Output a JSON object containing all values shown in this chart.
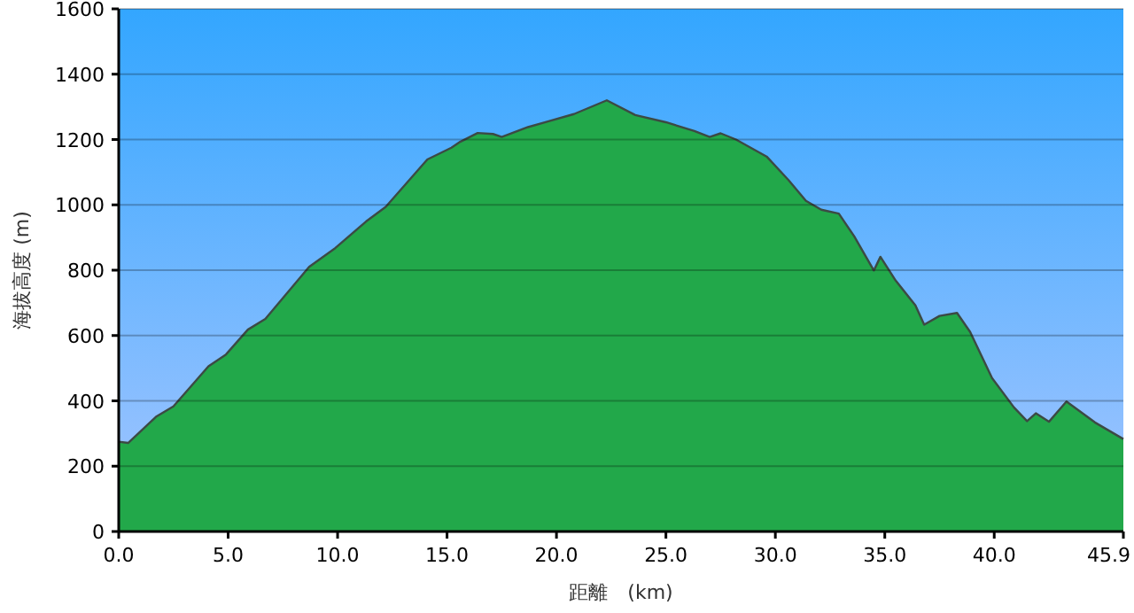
{
  "chart_data": {
    "type": "area",
    "xlabel": "距離　(km)",
    "ylabel": "海拔高度 (m)",
    "x": [
      0,
      0.43,
      1.7,
      2.5,
      4.1,
      4.9,
      5.9,
      6.7,
      8.7,
      9.9,
      11.3,
      12.2,
      14.1,
      15.2,
      15.6,
      16.4,
      17.1,
      17.5,
      18.7,
      19.5,
      20.8,
      22.3,
      23.6,
      25.0,
      26.3,
      27.0,
      27.5,
      28.2,
      29.6,
      30.6,
      31.4,
      32.1,
      32.9,
      33.6,
      34.5,
      34.8,
      35.5,
      36.4,
      36.8,
      37.5,
      38.3,
      38.9,
      39.9,
      40.9,
      41.5,
      41.9,
      42.5,
      43.3,
      44.6,
      45.9
    ],
    "series": [
      {
        "color": "#22a84a",
        "values": [
          275,
          271,
          351,
          383,
          506,
          542,
          618,
          651,
          810,
          868,
          949,
          994,
          1139,
          1175,
          1193,
          1220,
          1217,
          1208,
          1238,
          1253,
          1278,
          1320,
          1275,
          1253,
          1226,
          1208,
          1219,
          1200,
          1148,
          1076,
          1012,
          985,
          973,
          904,
          799,
          841,
          768,
          692,
          633,
          660,
          669,
          611,
          470,
          380,
          338,
          362,
          336,
          398,
          334,
          283
        ]
      }
    ],
    "xlim": [
      0,
      45.9
    ],
    "xticks": [
      {
        "value": 0,
        "label": "0.0"
      },
      {
        "value": 5,
        "label": "5.0"
      },
      {
        "value": 10,
        "label": "10.0"
      },
      {
        "value": 15,
        "label": "15.0"
      },
      {
        "value": 20,
        "label": "20.0"
      },
      {
        "value": 25,
        "label": "25.0"
      },
      {
        "value": 30,
        "label": "30.0"
      },
      {
        "value": 35,
        "label": "35.0"
      },
      {
        "value": 40,
        "label": "40.0"
      },
      45.9
    ],
    "ylim": [
      0,
      1600
    ],
    "yticks": [
      0,
      200,
      400,
      600,
      800,
      1000,
      1200,
      1400,
      1600
    ],
    "grid": "y"
  }
}
